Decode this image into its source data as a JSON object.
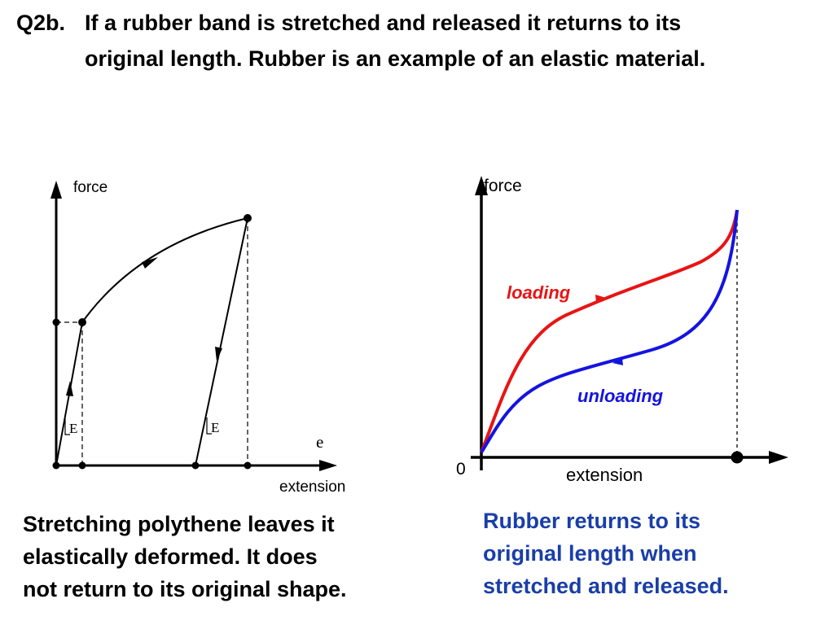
{
  "title": {
    "number": "Q2b.",
    "line1": "If a rubber band is stretched and released it returns to its",
    "line2": "original length.  Rubber is an example of an elastic material."
  },
  "left_diagram": {
    "y_axis_label": "force",
    "x_axis_label": "extension",
    "e_label": "e",
    "slope_label_1": "E",
    "slope_label_2": "E"
  },
  "right_diagram": {
    "y_axis_label": "force",
    "x_axis_label": "extension",
    "origin_label": "0",
    "loading_label": "loading",
    "unloading_label": "unloading",
    "loading_color": "#e81414",
    "unloading_color": "#1414e0"
  },
  "captions": {
    "left": [
      "Stretching polythene leaves it",
      "elastically deformed. It does",
      "not return to its original shape."
    ],
    "right": [
      "Rubber  returns to its",
      "original length  when",
      "stretched and released."
    ],
    "right_color": "#1a3ea8"
  }
}
